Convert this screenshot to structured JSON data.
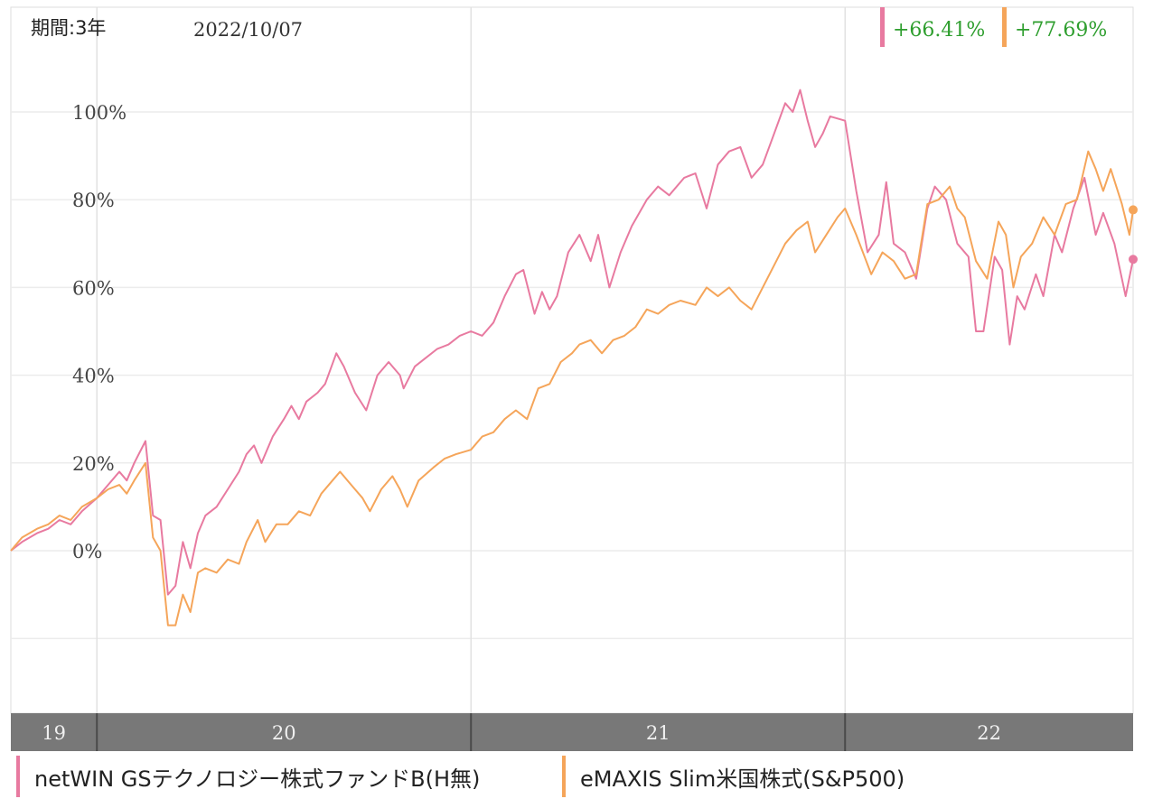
{
  "header": {
    "period": "期間:3年",
    "date": "2022/10/07",
    "returns": [
      {
        "value": "+66.41%",
        "color": "#e87aa0"
      },
      {
        "value": "+77.69%",
        "color": "#f5a55a"
      }
    ]
  },
  "legend": [
    {
      "label": "netWIN GSテクノロジー株式ファンドB(H無)",
      "color": "#e87aa0"
    },
    {
      "label": "eMAXIS Slim米国株式(S&P500)",
      "color": "#f5a55a"
    }
  ],
  "chart_data": {
    "type": "line",
    "ylim": [
      -35,
      105
    ],
    "xlim": [
      2019.77,
      2022.77
    ],
    "yticks": [
      {
        "value": 0,
        "label": "0%"
      },
      {
        "value": 20,
        "label": "20%"
      },
      {
        "value": 40,
        "label": "40%"
      },
      {
        "value": 60,
        "label": "60%"
      },
      {
        "value": 80,
        "label": "80%"
      },
      {
        "value": 100,
        "label": "100%"
      }
    ],
    "year_bands": [
      {
        "label": "19",
        "start": 2019.77,
        "end": 2020.0
      },
      {
        "label": "20",
        "start": 2020.0,
        "end": 2021.0
      },
      {
        "label": "21",
        "start": 2021.0,
        "end": 2022.0
      },
      {
        "label": "22",
        "start": 2022.0,
        "end": 2022.77
      }
    ],
    "grid": true,
    "series": [
      {
        "name": "netWIN GSテクノロジー株式ファンドB(H無)",
        "color": "#e87aa0",
        "points": [
          [
            2019.77,
            0
          ],
          [
            2019.8,
            2
          ],
          [
            2019.84,
            4
          ],
          [
            2019.87,
            5
          ],
          [
            2019.9,
            7
          ],
          [
            2019.93,
            6
          ],
          [
            2019.96,
            9
          ],
          [
            2020.0,
            12
          ],
          [
            2020.03,
            15
          ],
          [
            2020.06,
            18
          ],
          [
            2020.08,
            16
          ],
          [
            2020.1,
            20
          ],
          [
            2020.13,
            25
          ],
          [
            2020.15,
            8
          ],
          [
            2020.17,
            7
          ],
          [
            2020.19,
            -10
          ],
          [
            2020.21,
            -8
          ],
          [
            2020.23,
            2
          ],
          [
            2020.25,
            -4
          ],
          [
            2020.27,
            4
          ],
          [
            2020.29,
            8
          ],
          [
            2020.32,
            10
          ],
          [
            2020.35,
            14
          ],
          [
            2020.38,
            18
          ],
          [
            2020.4,
            22
          ],
          [
            2020.42,
            24
          ],
          [
            2020.44,
            20
          ],
          [
            2020.47,
            26
          ],
          [
            2020.5,
            30
          ],
          [
            2020.52,
            33
          ],
          [
            2020.54,
            30
          ],
          [
            2020.56,
            34
          ],
          [
            2020.59,
            36
          ],
          [
            2020.61,
            38
          ],
          [
            2020.64,
            45
          ],
          [
            2020.66,
            42
          ],
          [
            2020.69,
            36
          ],
          [
            2020.72,
            32
          ],
          [
            2020.75,
            40
          ],
          [
            2020.78,
            43
          ],
          [
            2020.81,
            40
          ],
          [
            2020.82,
            37
          ],
          [
            2020.85,
            42
          ],
          [
            2020.88,
            44
          ],
          [
            2020.91,
            46
          ],
          [
            2020.94,
            47
          ],
          [
            2020.97,
            49
          ],
          [
            2021.0,
            50
          ],
          [
            2021.03,
            49
          ],
          [
            2021.06,
            52
          ],
          [
            2021.09,
            58
          ],
          [
            2021.12,
            63
          ],
          [
            2021.14,
            64
          ],
          [
            2021.17,
            54
          ],
          [
            2021.19,
            59
          ],
          [
            2021.21,
            55
          ],
          [
            2021.23,
            58
          ],
          [
            2021.26,
            68
          ],
          [
            2021.29,
            72
          ],
          [
            2021.32,
            66
          ],
          [
            2021.34,
            72
          ],
          [
            2021.37,
            60
          ],
          [
            2021.4,
            68
          ],
          [
            2021.43,
            74
          ],
          [
            2021.47,
            80
          ],
          [
            2021.5,
            83
          ],
          [
            2021.53,
            81
          ],
          [
            2021.57,
            85
          ],
          [
            2021.6,
            86
          ],
          [
            2021.63,
            78
          ],
          [
            2021.66,
            88
          ],
          [
            2021.69,
            91
          ],
          [
            2021.72,
            92
          ],
          [
            2021.75,
            85
          ],
          [
            2021.78,
            88
          ],
          [
            2021.81,
            95
          ],
          [
            2021.84,
            102
          ],
          [
            2021.86,
            100
          ],
          [
            2021.88,
            105
          ],
          [
            2021.9,
            98
          ],
          [
            2021.92,
            92
          ],
          [
            2021.94,
            95
          ],
          [
            2021.96,
            99
          ],
          [
            2022.0,
            98
          ],
          [
            2022.03,
            82
          ],
          [
            2022.06,
            68
          ],
          [
            2022.09,
            72
          ],
          [
            2022.11,
            84
          ],
          [
            2022.13,
            70
          ],
          [
            2022.16,
            68
          ],
          [
            2022.19,
            62
          ],
          [
            2022.22,
            78
          ],
          [
            2022.24,
            83
          ],
          [
            2022.27,
            80
          ],
          [
            2022.3,
            70
          ],
          [
            2022.33,
            67
          ],
          [
            2022.35,
            50
          ],
          [
            2022.37,
            50
          ],
          [
            2022.4,
            67
          ],
          [
            2022.42,
            64
          ],
          [
            2022.44,
            47
          ],
          [
            2022.46,
            58
          ],
          [
            2022.48,
            55
          ],
          [
            2022.51,
            63
          ],
          [
            2022.53,
            58
          ],
          [
            2022.56,
            72
          ],
          [
            2022.58,
            68
          ],
          [
            2022.61,
            78
          ],
          [
            2022.64,
            85
          ],
          [
            2022.67,
            72
          ],
          [
            2022.69,
            77
          ],
          [
            2022.72,
            70
          ],
          [
            2022.75,
            58
          ],
          [
            2022.77,
            66.41
          ]
        ]
      },
      {
        "name": "eMAXIS Slim米国株式(S&P500)",
        "color": "#f5a55a",
        "points": [
          [
            2019.77,
            0
          ],
          [
            2019.8,
            3
          ],
          [
            2019.84,
            5
          ],
          [
            2019.87,
            6
          ],
          [
            2019.9,
            8
          ],
          [
            2019.93,
            7
          ],
          [
            2019.96,
            10
          ],
          [
            2020.0,
            12
          ],
          [
            2020.03,
            14
          ],
          [
            2020.06,
            15
          ],
          [
            2020.08,
            13
          ],
          [
            2020.1,
            16
          ],
          [
            2020.13,
            20
          ],
          [
            2020.15,
            3
          ],
          [
            2020.17,
            0
          ],
          [
            2020.19,
            -17
          ],
          [
            2020.21,
            -17
          ],
          [
            2020.23,
            -10
          ],
          [
            2020.25,
            -14
          ],
          [
            2020.27,
            -5
          ],
          [
            2020.29,
            -4
          ],
          [
            2020.32,
            -5
          ],
          [
            2020.35,
            -2
          ],
          [
            2020.38,
            -3
          ],
          [
            2020.4,
            2
          ],
          [
            2020.43,
            7
          ],
          [
            2020.45,
            2
          ],
          [
            2020.48,
            6
          ],
          [
            2020.51,
            6
          ],
          [
            2020.54,
            9
          ],
          [
            2020.57,
            8
          ],
          [
            2020.6,
            13
          ],
          [
            2020.63,
            16
          ],
          [
            2020.65,
            18
          ],
          [
            2020.68,
            15
          ],
          [
            2020.71,
            12
          ],
          [
            2020.73,
            9
          ],
          [
            2020.76,
            14
          ],
          [
            2020.79,
            17
          ],
          [
            2020.81,
            14
          ],
          [
            2020.83,
            10
          ],
          [
            2020.86,
            16
          ],
          [
            2020.9,
            19
          ],
          [
            2020.93,
            21
          ],
          [
            2020.96,
            22
          ],
          [
            2021.0,
            23
          ],
          [
            2021.03,
            26
          ],
          [
            2021.06,
            27
          ],
          [
            2021.09,
            30
          ],
          [
            2021.12,
            32
          ],
          [
            2021.15,
            30
          ],
          [
            2021.18,
            37
          ],
          [
            2021.21,
            38
          ],
          [
            2021.24,
            43
          ],
          [
            2021.27,
            45
          ],
          [
            2021.29,
            47
          ],
          [
            2021.32,
            48
          ],
          [
            2021.35,
            45
          ],
          [
            2021.38,
            48
          ],
          [
            2021.41,
            49
          ],
          [
            2021.44,
            51
          ],
          [
            2021.47,
            55
          ],
          [
            2021.5,
            54
          ],
          [
            2021.53,
            56
          ],
          [
            2021.56,
            57
          ],
          [
            2021.6,
            56
          ],
          [
            2021.63,
            60
          ],
          [
            2021.66,
            58
          ],
          [
            2021.69,
            60
          ],
          [
            2021.72,
            57
          ],
          [
            2021.75,
            55
          ],
          [
            2021.78,
            60
          ],
          [
            2021.81,
            65
          ],
          [
            2021.84,
            70
          ],
          [
            2021.87,
            73
          ],
          [
            2021.9,
            75
          ],
          [
            2021.92,
            68
          ],
          [
            2021.95,
            72
          ],
          [
            2021.98,
            76
          ],
          [
            2022.0,
            78
          ],
          [
            2022.03,
            72
          ],
          [
            2022.07,
            63
          ],
          [
            2022.1,
            68
          ],
          [
            2022.13,
            66
          ],
          [
            2022.16,
            62
          ],
          [
            2022.19,
            63
          ],
          [
            2022.22,
            79
          ],
          [
            2022.25,
            80
          ],
          [
            2022.28,
            83
          ],
          [
            2022.3,
            78
          ],
          [
            2022.32,
            76
          ],
          [
            2022.35,
            66
          ],
          [
            2022.38,
            62
          ],
          [
            2022.41,
            75
          ],
          [
            2022.43,
            72
          ],
          [
            2022.45,
            60
          ],
          [
            2022.47,
            67
          ],
          [
            2022.5,
            70
          ],
          [
            2022.53,
            76
          ],
          [
            2022.56,
            72
          ],
          [
            2022.59,
            79
          ],
          [
            2022.62,
            80
          ],
          [
            2022.65,
            91
          ],
          [
            2022.67,
            87
          ],
          [
            2022.69,
            82
          ],
          [
            2022.71,
            87
          ],
          [
            2022.74,
            79
          ],
          [
            2022.76,
            72
          ],
          [
            2022.77,
            77.69
          ]
        ]
      }
    ]
  }
}
